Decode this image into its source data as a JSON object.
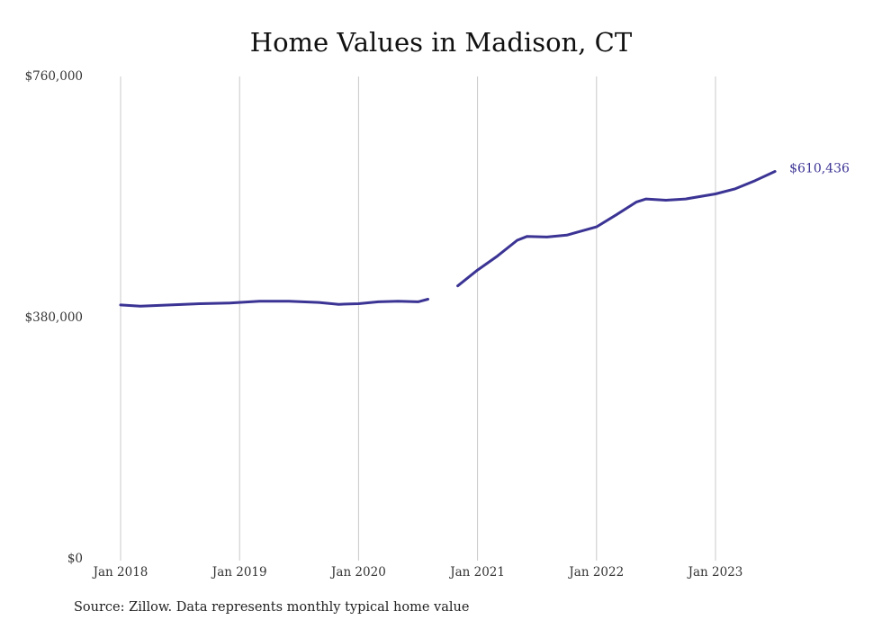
{
  "chart_data": {
    "type": "line",
    "title": "Home Values in Madison, CT",
    "xlabel": "",
    "ylabel": "",
    "ylim": [
      0,
      760000
    ],
    "xlim": [
      "2018-01",
      "2023-09"
    ],
    "y_ticks": [
      {
        "value": 0,
        "label": "$0"
      },
      {
        "value": 380000,
        "label": "$380,000"
      },
      {
        "value": 760000,
        "label": "$760,000"
      }
    ],
    "x_ticks": [
      {
        "value": "2018-01",
        "label": "Jan 2018"
      },
      {
        "value": "2019-01",
        "label": "Jan 2019"
      },
      {
        "value": "2020-01",
        "label": "Jan 2020"
      },
      {
        "value": "2021-01",
        "label": "Jan 2021"
      },
      {
        "value": "2022-01",
        "label": "Jan 2022"
      },
      {
        "value": "2023-01",
        "label": "Jan 2023"
      }
    ],
    "grid": {
      "vertical": true,
      "horizontal": false
    },
    "line_color": "#3b3494",
    "series": [
      {
        "segments": [
          [
            {
              "x": "2018-01",
              "y": 400000
            },
            {
              "x": "2018-03",
              "y": 398000
            },
            {
              "x": "2018-06",
              "y": 400000
            },
            {
              "x": "2018-09",
              "y": 402000
            },
            {
              "x": "2018-12",
              "y": 403000
            },
            {
              "x": "2019-03",
              "y": 406000
            },
            {
              "x": "2019-06",
              "y": 406000
            },
            {
              "x": "2019-09",
              "y": 404000
            },
            {
              "x": "2019-11",
              "y": 401000
            },
            {
              "x": "2020-01",
              "y": 402000
            },
            {
              "x": "2020-03",
              "y": 405000
            },
            {
              "x": "2020-05",
              "y": 406000
            },
            {
              "x": "2020-07",
              "y": 405000
            },
            {
              "x": "2020-08",
              "y": 409000
            }
          ],
          [
            {
              "x": "2020-11",
              "y": 430000
            },
            {
              "x": "2021-01",
              "y": 455000
            },
            {
              "x": "2021-03",
              "y": 477000
            },
            {
              "x": "2021-05",
              "y": 502000
            },
            {
              "x": "2021-06",
              "y": 508000
            },
            {
              "x": "2021-08",
              "y": 507000
            },
            {
              "x": "2021-10",
              "y": 510000
            },
            {
              "x": "2022-01",
              "y": 523000
            },
            {
              "x": "2022-03",
              "y": 542000
            },
            {
              "x": "2022-05",
              "y": 562000
            },
            {
              "x": "2022-06",
              "y": 567000
            },
            {
              "x": "2022-08",
              "y": 565000
            },
            {
              "x": "2022-10",
              "y": 567000
            },
            {
              "x": "2023-01",
              "y": 575000
            },
            {
              "x": "2023-03",
              "y": 583000
            },
            {
              "x": "2023-05",
              "y": 596000
            },
            {
              "x": "2023-07",
              "y": 610436
            }
          ]
        ]
      }
    ],
    "end_label": {
      "text": "$610,436",
      "x": "2023-07",
      "y": 610436
    }
  },
  "footer": {
    "source": "Source: Zillow. Data represents monthly typical home value"
  }
}
